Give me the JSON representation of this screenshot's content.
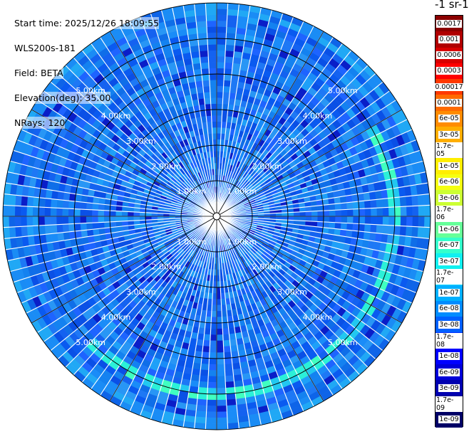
{
  "header": {
    "start_time": "Start time: 2025/12/26 18:09:55",
    "instrument": "WLS200s-181",
    "field": "Field: BETA",
    "elevation": "Elevation(deg): 35.00",
    "nrays": "NRays: 120"
  },
  "colorbar": {
    "title": "-1 sr-1",
    "labels": [
      "0.0017",
      "0.001",
      "0.0006",
      "0.0003",
      "0.00017",
      "0.0001",
      "6e-05",
      "3e-05",
      "1.7e-05",
      "1e-05",
      "6e-06",
      "3e-06",
      "1.7e-06",
      "1e-06",
      "6e-07",
      "3e-07",
      "1.7e-07",
      "1e-07",
      "6e-08",
      "3e-08",
      "1.7e-08",
      "1e-08",
      "6e-09",
      "3e-09",
      "1.7e-09",
      "1e-09"
    ],
    "colors": [
      "#8b0000",
      "#b00000",
      "#d80000",
      "#ff0000",
      "#ff3800",
      "#ff6a00",
      "#ff8c00",
      "#ffae00",
      "#ffd000",
      "#ffee00",
      "#f5ff10",
      "#ccff33",
      "#99ff66",
      "#66ff99",
      "#33ffcc",
      "#10f0f0",
      "#00d4ff",
      "#00b0ff",
      "#008cff",
      "#0060ff",
      "#0030ff",
      "#0000ff",
      "#0000d8",
      "#0000b0",
      "#00008b",
      "#000066"
    ]
  },
  "chart_data": {
    "type": "heatmap",
    "subtype": "polar PPI scan",
    "field": "BETA",
    "range_unit": "km",
    "range_rings_km": [
      1,
      2,
      3,
      4,
      5
    ],
    "ring_labels": [
      "1.00km",
      "2.00km",
      "3.00km",
      "4.00km",
      "5.00km"
    ],
    "max_range_km": 6.0,
    "rays": 120,
    "dominant_value_range": [
      "6e-08",
      "3e-08"
    ],
    "enhanced_band": {
      "range_km": [
        4.8,
        5.2
      ],
      "azimuth_deg": [
        60,
        225
      ],
      "value": "1.7e-07"
    }
  }
}
